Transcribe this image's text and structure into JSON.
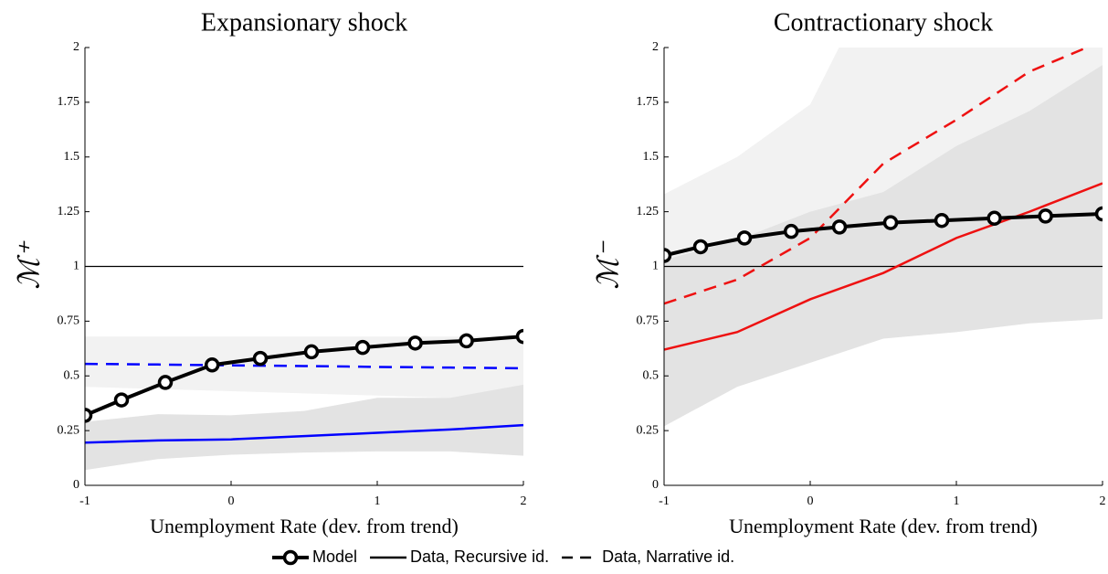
{
  "chart_data": [
    {
      "type": "line",
      "title": "Expansionary shock",
      "xlabel": "Unemployment Rate (dev. from trend)",
      "ylabel": "ℳ⁺",
      "xlim": [
        -1,
        2
      ],
      "xticks": [
        -1,
        0,
        1,
        2
      ],
      "ylim": [
        0,
        2
      ],
      "yticks": [
        0,
        0.25,
        0.5,
        0.75,
        1,
        1.25,
        1.5,
        1.75,
        2
      ],
      "hline": 1,
      "hline_color": "#000000",
      "bands": [
        {
          "color": "#f2f2f2",
          "x": [
            -1,
            -0.5,
            0,
            0.5,
            1,
            1.5,
            2
          ],
          "lower": [
            0.45,
            0.44,
            0.43,
            0.42,
            0.41,
            0.4,
            0.4
          ],
          "upper": [
            0.68,
            0.68,
            0.68,
            0.68,
            0.68,
            0.68,
            0.68
          ]
        },
        {
          "color": "#e3e3e3",
          "x": [
            -1,
            -0.5,
            0,
            0.5,
            1,
            1.5,
            2
          ],
          "lower": [
            0.07,
            0.12,
            0.14,
            0.15,
            0.155,
            0.155,
            0.135
          ],
          "upper": [
            0.29,
            0.325,
            0.32,
            0.34,
            0.4,
            0.4,
            0.46
          ]
        }
      ],
      "series": [
        {
          "name": "Data, Recursive id.",
          "color": "#0000ff",
          "style": "solid",
          "x": [
            -1,
            -0.5,
            0,
            0.5,
            1,
            1.5,
            2
          ],
          "values": [
            0.195,
            0.205,
            0.21,
            0.225,
            0.24,
            0.255,
            0.275
          ]
        },
        {
          "name": "Data, Narrative id.",
          "color": "#0000ff",
          "style": "dashed",
          "x": [
            -1,
            -0.5,
            0,
            0.5,
            1,
            1.5,
            2
          ],
          "values": [
            0.555,
            0.552,
            0.548,
            0.545,
            0.541,
            0.538,
            0.535
          ]
        },
        {
          "name": "Model",
          "color": "#000000",
          "style": "marker",
          "x": [
            -1,
            -0.75,
            -0.45,
            -0.13,
            0.2,
            0.55,
            0.9,
            1.26,
            1.61,
            2
          ],
          "values": [
            0.32,
            0.39,
            0.47,
            0.55,
            0.58,
            0.61,
            0.63,
            0.65,
            0.66,
            0.68
          ]
        }
      ]
    },
    {
      "type": "line",
      "title": "Contractionary shock",
      "xlabel": "Unemployment Rate (dev. from trend)",
      "ylabel": "ℳ⁻",
      "xlim": [
        -1,
        2
      ],
      "xticks": [
        -1,
        0,
        1,
        2
      ],
      "ylim": [
        0,
        2
      ],
      "yticks": [
        0,
        0.25,
        0.5,
        0.75,
        1,
        1.25,
        1.5,
        1.75,
        2
      ],
      "hline": 1,
      "hline_color": "#000000",
      "bands": [
        {
          "color": "#f2f2f2",
          "x": [
            -1,
            -0.5,
            0,
            0.5,
            1,
            1.5,
            2
          ],
          "lower": [
            1.03,
            1.05,
            1.12,
            1.2,
            1.3,
            1.4,
            1.5
          ],
          "upper": [
            1.33,
            1.5,
            1.74,
            2.4,
            2.6,
            2.8,
            3.0
          ]
        },
        {
          "color": "#e3e3e3",
          "x": [
            -1,
            -0.5,
            0,
            0.5,
            1,
            1.5,
            2
          ],
          "lower": [
            0.27,
            0.45,
            0.56,
            0.67,
            0.7,
            0.74,
            0.76
          ],
          "upper": [
            1.03,
            1.12,
            1.25,
            1.34,
            1.55,
            1.71,
            1.92
          ]
        }
      ],
      "series": [
        {
          "name": "Data, Recursive id.",
          "color": "#ee1111",
          "style": "solid",
          "x": [
            -1,
            -0.5,
            0,
            0.5,
            1,
            1.5,
            2
          ],
          "values": [
            0.62,
            0.7,
            0.85,
            0.97,
            1.13,
            1.25,
            1.38
          ]
        },
        {
          "name": "Data, Narrative id.",
          "color": "#ee1111",
          "style": "dashed",
          "x": [
            -1,
            -0.5,
            0,
            0.5,
            1,
            1.5,
            2
          ],
          "values": [
            0.83,
            0.94,
            1.13,
            1.47,
            1.67,
            1.89,
            2.03
          ]
        },
        {
          "name": "Model",
          "color": "#000000",
          "style": "marker",
          "x": [
            -1,
            -0.75,
            -0.45,
            -0.13,
            0.2,
            0.55,
            0.9,
            1.26,
            1.61,
            2
          ],
          "values": [
            1.05,
            1.09,
            1.13,
            1.16,
            1.18,
            1.2,
            1.21,
            1.22,
            1.23,
            1.24
          ]
        }
      ]
    }
  ]
}
